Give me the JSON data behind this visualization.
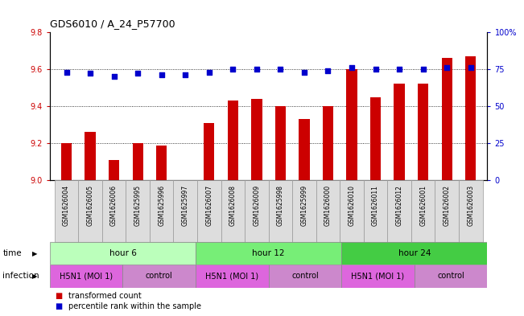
{
  "title": "GDS6010 / A_24_P57700",
  "samples": [
    "GSM1626004",
    "GSM1626005",
    "GSM1626006",
    "GSM1625995",
    "GSM1625996",
    "GSM1625997",
    "GSM1626007",
    "GSM1626008",
    "GSM1626009",
    "GSM1625998",
    "GSM1625999",
    "GSM1626000",
    "GSM1626010",
    "GSM1626011",
    "GSM1626012",
    "GSM1626001",
    "GSM1626002",
    "GSM1626003"
  ],
  "bar_values": [
    9.2,
    9.26,
    9.11,
    9.2,
    9.19,
    9.0,
    9.31,
    9.43,
    9.44,
    9.4,
    9.33,
    9.4,
    9.6,
    9.45,
    9.52,
    9.52,
    9.66,
    9.67
  ],
  "dot_values": [
    73,
    72,
    70,
    72,
    71,
    71,
    73,
    75,
    75,
    75,
    73,
    74,
    76,
    75,
    75,
    75,
    76,
    76
  ],
  "bar_color": "#cc0000",
  "dot_color": "#0000cc",
  "ylim_left": [
    9.0,
    9.8
  ],
  "ylim_right": [
    0,
    100
  ],
  "yticks_left": [
    9.0,
    9.2,
    9.4,
    9.6,
    9.8
  ],
  "yticks_right": [
    0,
    25,
    50,
    75,
    100
  ],
  "ytick_labels_right": [
    "0",
    "25",
    "50",
    "75",
    "100%"
  ],
  "gridlines": [
    9.2,
    9.4,
    9.6
  ],
  "time_groups": [
    {
      "label": "hour 6",
      "start": 0,
      "end": 6,
      "color": "#bbffbb"
    },
    {
      "label": "hour 12",
      "start": 6,
      "end": 12,
      "color": "#77ee77"
    },
    {
      "label": "hour 24",
      "start": 12,
      "end": 18,
      "color": "#44cc44"
    }
  ],
  "infection_groups": [
    {
      "label": "H5N1 (MOI 1)",
      "start": 0,
      "end": 3,
      "color": "#dd66dd"
    },
    {
      "label": "control",
      "start": 3,
      "end": 6,
      "color": "#cc88cc"
    },
    {
      "label": "H5N1 (MOI 1)",
      "start": 6,
      "end": 9,
      "color": "#dd66dd"
    },
    {
      "label": "control",
      "start": 9,
      "end": 12,
      "color": "#cc88cc"
    },
    {
      "label": "H5N1 (MOI 1)",
      "start": 12,
      "end": 15,
      "color": "#dd66dd"
    },
    {
      "label": "control",
      "start": 15,
      "end": 18,
      "color": "#cc88cc"
    }
  ],
  "time_label": "time",
  "infection_label": "infection",
  "legend_bar_label": "transformed count",
  "legend_dot_label": "percentile rank within the sample",
  "tick_label_color_left": "#cc0000",
  "tick_label_color_right": "#0000cc",
  "sample_bg_color": "#dddddd",
  "sample_border_color": "#999999"
}
